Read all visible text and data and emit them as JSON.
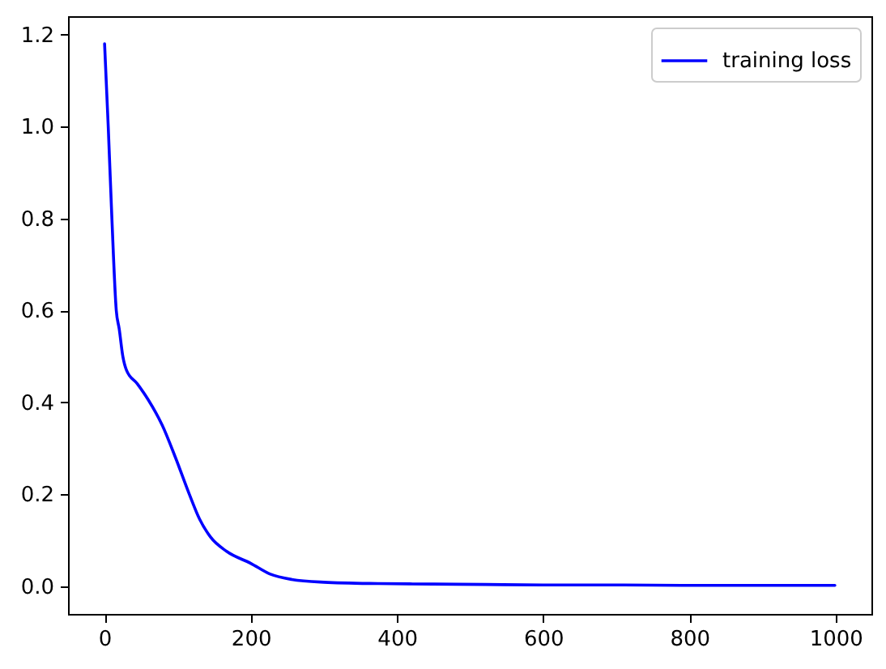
{
  "chart_data": {
    "type": "line",
    "x": [
      0,
      5,
      10,
      16,
      20,
      25,
      30,
      45,
      60,
      79,
      97,
      116,
      130,
      145,
      167,
      200,
      226,
      256,
      300,
      374,
      450,
      521,
      600,
      700,
      800,
      900,
      999
    ],
    "series": [
      {
        "name": "training loss",
        "color": "#0000ff",
        "values": [
          1.18,
          1.0,
          0.8,
          0.6,
          0.56,
          0.5,
          0.47,
          0.44,
          0.405,
          0.35,
          0.28,
          0.2,
          0.146,
          0.107,
          0.076,
          0.05,
          0.027,
          0.015,
          0.009,
          0.006,
          0.005,
          0.004,
          0.003,
          0.003,
          0.002,
          0.002,
          0.002
        ]
      }
    ],
    "xlim": [
      -50,
      1049
    ],
    "ylim": [
      -0.06,
      1.24
    ],
    "xticks": [
      0,
      200,
      400,
      600,
      800,
      1000
    ],
    "yticks": [
      {
        "value": 0,
        "label": "0.0"
      },
      0.2,
      0.4,
      0.6,
      0.8,
      {
        "value": 1,
        "label": "1.0"
      },
      1.2
    ],
    "grid": false,
    "legend": "top right",
    "marker": "none",
    "line_style": "solid"
  }
}
